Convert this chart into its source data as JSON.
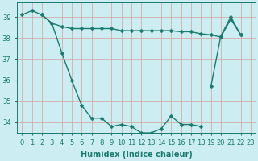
{
  "title": "",
  "xlabel": "Humidex (Indice chaleur)",
  "ylabel": "",
  "bg_color": "#cceef2",
  "line_color": "#1a7a6e",
  "x_all": [
    0,
    1,
    2,
    3,
    4,
    5,
    6,
    7,
    8,
    9,
    10,
    11,
    12,
    13,
    14,
    15,
    16,
    17,
    18,
    19,
    20,
    21,
    22,
    23
  ],
  "series": [
    {
      "x": [
        0,
        1,
        2,
        3,
        4,
        5,
        6,
        7,
        8,
        9,
        10,
        11,
        12,
        13,
        14,
        15,
        16,
        17,
        18
      ],
      "y": [
        39.1,
        39.3,
        39.1,
        38.7,
        37.3,
        36.0,
        34.8,
        34.2,
        34.2,
        33.8,
        33.9,
        33.8,
        33.5,
        33.5,
        33.7,
        34.3,
        33.9,
        33.9,
        33.8
      ]
    },
    {
      "x": [
        2,
        3,
        4,
        5,
        6,
        7,
        8,
        9,
        10,
        11,
        12,
        13,
        14,
        15,
        16,
        17,
        18,
        19,
        20,
        21,
        22
      ],
      "y": [
        39.1,
        38.7,
        38.55,
        38.45,
        38.45,
        38.45,
        38.45,
        38.45,
        38.35,
        38.35,
        38.35,
        38.35,
        38.35,
        38.35,
        38.3,
        38.3,
        38.2,
        38.15,
        38.05,
        38.9,
        38.15
      ]
    },
    {
      "x": [
        19,
        20,
        21,
        22
      ],
      "y": [
        35.7,
        38.1,
        39.0,
        38.15
      ]
    }
  ],
  "ylim": [
    33.5,
    39.7
  ],
  "xlim": [
    -0.5,
    23.5
  ],
  "yticks": [
    34,
    35,
    36,
    37,
    38,
    39
  ],
  "xticks": [
    0,
    1,
    2,
    3,
    4,
    5,
    6,
    7,
    8,
    9,
    10,
    11,
    12,
    13,
    14,
    15,
    16,
    17,
    18,
    19,
    20,
    21,
    22,
    23
  ],
  "marker": "D",
  "markersize": 2.5,
  "linewidth": 1.0,
  "fontsize_label": 7,
  "fontsize_tick": 6
}
